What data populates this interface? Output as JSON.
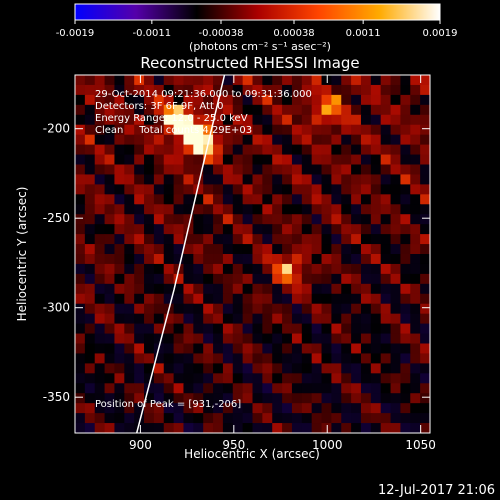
{
  "chart_data": {
    "type": "heatmap",
    "title": "Reconstructed RHESSI Image",
    "xlabel": "Heliocentric X (arcsec)",
    "ylabel": "Heliocentric Y (arcsec)",
    "xlim": [
      865,
      1055
    ],
    "ylim": [
      -370,
      -170
    ],
    "x_ticks": [
      "900",
      "950",
      "1000",
      "1050"
    ],
    "y_ticks": [
      "-200",
      "-250",
      "-300",
      "-350"
    ],
    "x_tick_values": [
      900,
      950,
      1000,
      1050
    ],
    "y_tick_values": [
      -200,
      -250,
      -300,
      -350
    ],
    "colorbar": {
      "min": -0.0019,
      "max": 0.0019,
      "tick_labels": [
        "-0.0019",
        "-0.0011",
        "-0.00038",
        "0.00038",
        "0.0011",
        "0.0019"
      ],
      "tick_values": [
        -0.0019,
        -0.0011,
        -0.00038,
        0.00038,
        0.0011,
        0.0019
      ],
      "units_label": "(photons cm⁻² s⁻¹ asec⁻²)",
      "colors": [
        "#0000ff",
        "#5500aa",
        "#000000",
        "#aa0000",
        "#ff4400",
        "#ffaa00",
        "#ffffff"
      ]
    },
    "peak": {
      "x": 931,
      "y": -206
    },
    "source_centers": [
      {
        "x": 931,
        "y": -206,
        "intensity": 1.0
      },
      {
        "x": 920,
        "y": -195,
        "intensity": 0.7
      },
      {
        "x": 980,
        "y": -278,
        "intensity": 0.55
      },
      {
        "x": 1000,
        "y": -190,
        "intensity": 0.45
      }
    ],
    "limb": [
      {
        "x": 898,
        "y": -370
      },
      {
        "x": 908,
        "y": -330
      },
      {
        "x": 918,
        "y": -290
      },
      {
        "x": 928,
        "y": -245
      },
      {
        "x": 937,
        "y": -205
      },
      {
        "x": 945,
        "y": -170
      }
    ],
    "annotations": {
      "time": "29-Oct-2014 09:21:36.000 to 09:31:36.000",
      "detectors": "Detectors: 3F 6F 9F, Att 0",
      "energy": "Energy Range: 12.0 - 25.0 keV",
      "clean": "Clean     Total counts 4.29E+03",
      "peak_label": "Position of Peak = [931,-206]"
    },
    "footer_date": "12-Jul-2017 21:06"
  }
}
